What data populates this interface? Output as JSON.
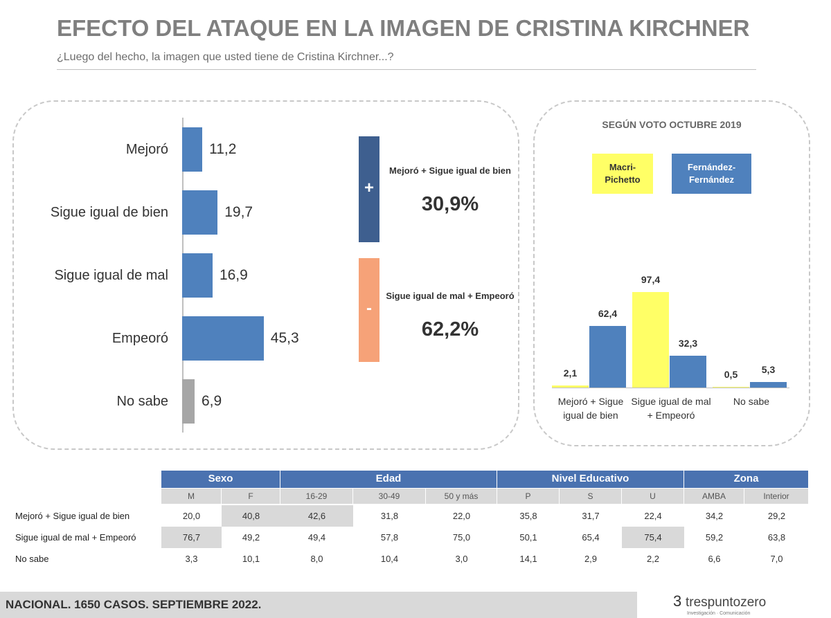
{
  "header": {
    "title": "EFECTO DEL ATAQUE EN LA IMAGEN DE CRISTINA KIRCHNER",
    "subtitle": "¿Luego del hecho, la imagen que usted tiene de Cristina Kirchner...?"
  },
  "chart_data": [
    {
      "type": "bar",
      "orientation": "horizontal",
      "categories": [
        "Mejoró",
        "Sigue igual de bien",
        "Sigue igual de mal",
        "Empeoró",
        "No sabe"
      ],
      "values": [
        11.2,
        19.7,
        16.9,
        45.3,
        6.9
      ],
      "value_labels": [
        "11,2",
        "19,7",
        "16,9",
        "45,3",
        "6,9"
      ],
      "colors": [
        "#4f81bd",
        "#4f81bd",
        "#4f81bd",
        "#4f81bd",
        "#a6a6a6"
      ]
    },
    {
      "type": "bar",
      "orientation": "vertical",
      "title": "SEGÚN VOTO OCTUBRE 2019",
      "categories": [
        "Mejoró + Sigue igual de bien",
        "Sigue igual de mal + Empeoró",
        "No sabe"
      ],
      "series": [
        {
          "name": "Macri-Pichetto",
          "color": "#ffff66",
          "values": [
            2.1,
            97.4,
            0.5
          ],
          "value_labels": [
            "2,1",
            "97,4",
            "0,5"
          ]
        },
        {
          "name": "Fernández-Fernández",
          "color": "#4f81bd",
          "values": [
            62.4,
            32.3,
            5.3
          ],
          "value_labels": [
            "62,4",
            "32,3",
            "5,3"
          ]
        }
      ]
    }
  ],
  "summary": [
    {
      "sign": "+",
      "label": "Mejoró + Sigue igual de bien",
      "value": "30,9%",
      "color": "#3e5f8f"
    },
    {
      "sign": "-",
      "label": "Sigue igual de mal + Empeoró",
      "value": "62,2%",
      "color": "#f6a278"
    }
  ],
  "table": {
    "groups": [
      {
        "label": "Sexo",
        "span": 2
      },
      {
        "label": "Edad",
        "span": 3
      },
      {
        "label": "Nivel Educativo",
        "span": 3
      },
      {
        "label": "Zona",
        "span": 2
      }
    ],
    "columns": [
      "M",
      "F",
      "16-29",
      "30-49",
      "50 y más",
      "P",
      "S",
      "U",
      "AMBA",
      "Interior"
    ],
    "rows": [
      [
        "Mejoró + Sigue igual de bien",
        "20,0",
        "40,8",
        "42,6",
        "31,8",
        "22,0",
        "35,8",
        "31,7",
        "22,4",
        "34,2",
        "29,2"
      ],
      [
        "Sigue igual de mal + Empeoró",
        "76,7",
        "49,2",
        "49,4",
        "57,8",
        "75,0",
        "50,1",
        "65,4",
        "75,4",
        "59,2",
        "63,8"
      ],
      [
        "No sabe",
        "3,3",
        "10,1",
        "8,0",
        "10,4",
        "3,0",
        "14,1",
        "2,9",
        "2,2",
        "6,6",
        "7,0"
      ]
    ],
    "highlight": [
      [
        0,
        2
      ],
      [
        0,
        3
      ],
      [
        1,
        1
      ],
      [
        1,
        8
      ]
    ]
  },
  "footer": {
    "note": "NACIONAL. 1650 CASOS. SEPTIEMBRE 2022.",
    "brand": "trespuntozero",
    "tagline": "Investigación · Comunicación"
  }
}
